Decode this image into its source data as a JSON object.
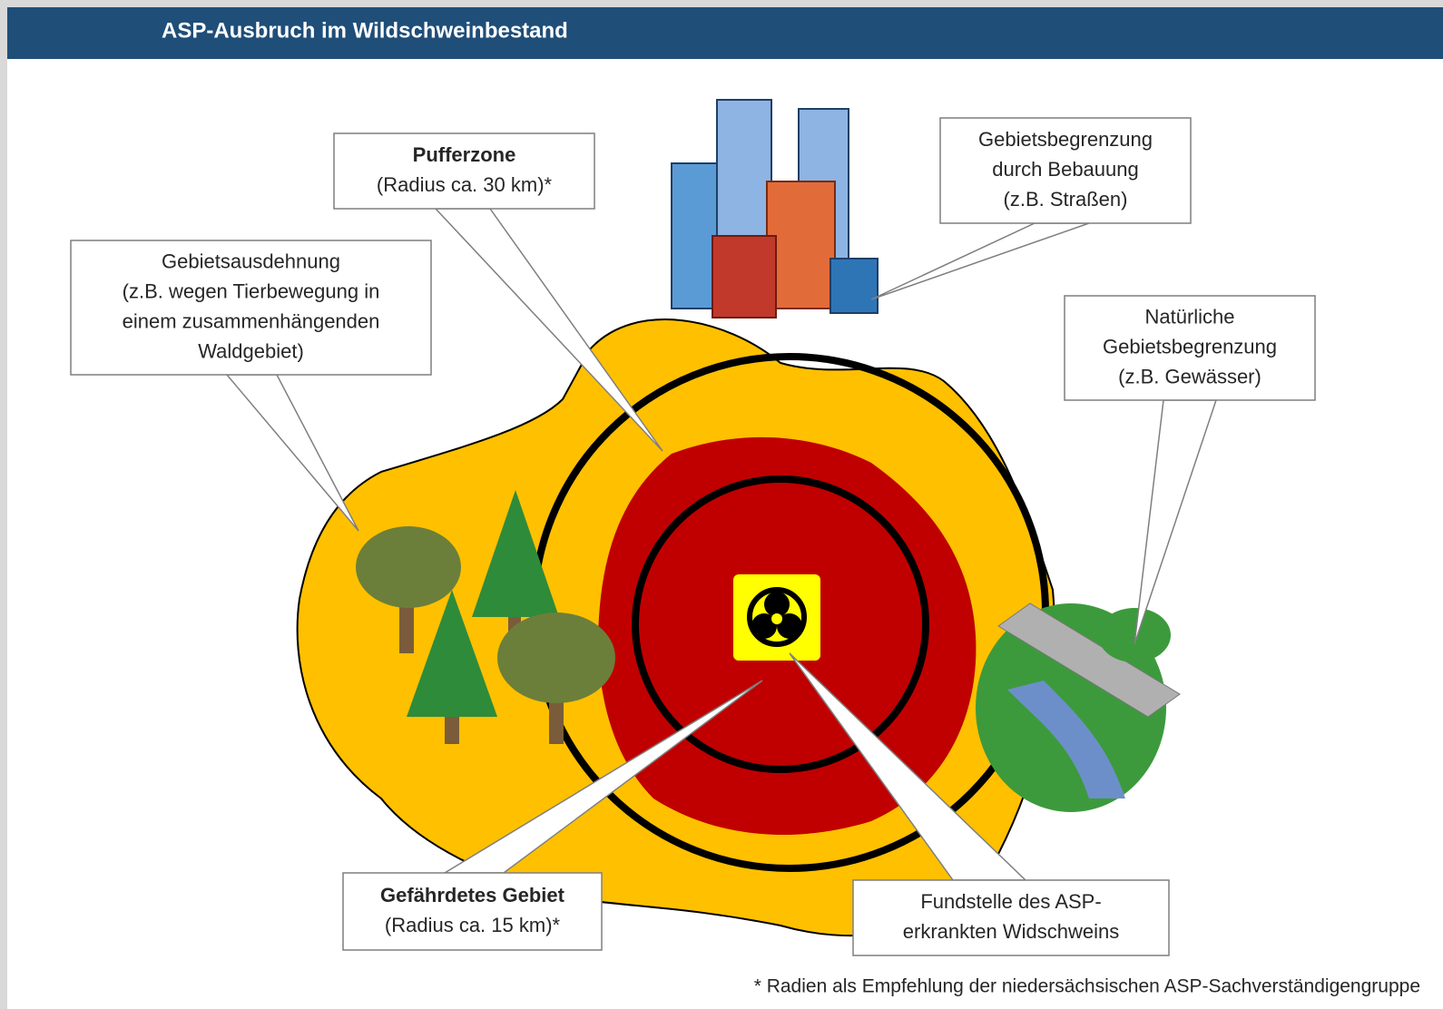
{
  "header": {
    "title": "ASP-Ausbruch im Wildschweinbestand"
  },
  "callouts": [
    {
      "title": "Pufferzone",
      "lines": [
        "(Radius ca. 30 km)*"
      ]
    },
    {
      "lines": [
        "Gebietsausdehnung",
        "(z.B. wegen Tierbewegung in",
        "einem zusammenhängenden",
        "Waldgebiet)"
      ]
    },
    {
      "lines": [
        "Gebietsbegrenzung",
        "durch Bebauung",
        "(z.B. Straßen)"
      ]
    },
    {
      "lines": [
        "Natürliche",
        "Gebietsbegrenzung",
        "(z.B. Gewässer)"
      ]
    },
    {
      "title": "Gefährdetes Gebiet",
      "lines": [
        "(Radius ca. 15 km)*"
      ]
    },
    {
      "lines": [
        "Fundstelle des ASP-",
        "erkrankten Widschweins"
      ]
    }
  ],
  "footnote": "* Radien als Empfehlung der niedersächsischen ASP-Sachverständigengruppe"
}
